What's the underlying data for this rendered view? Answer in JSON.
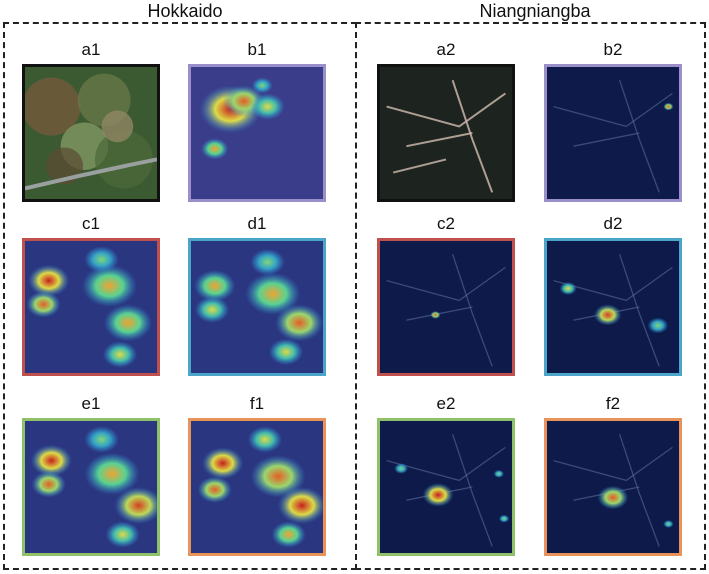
{
  "groups": [
    {
      "title": "Hokkaido",
      "panels": [
        {
          "label": "a1",
          "border_color": "#111111",
          "kind": "aerial-green",
          "hotspots": []
        },
        {
          "label": "b1",
          "border_color": "#9b8fc9",
          "kind": "heat-sparse",
          "hotspots": [
            [
              30,
              32,
              18,
              1.0
            ],
            [
              40,
              26,
              12,
              0.9
            ],
            [
              18,
              62,
              8,
              0.8
            ],
            [
              58,
              30,
              10,
              0.7
            ],
            [
              54,
              14,
              6,
              0.6
            ]
          ]
        },
        {
          "label": "c1",
          "border_color": "#c0504d",
          "kind": "heat-wide",
          "hotspots": [
            [
              18,
              30,
              12,
              1.0
            ],
            [
              14,
              48,
              10,
              0.9
            ],
            [
              64,
              34,
              16,
              0.8
            ],
            [
              78,
              62,
              14,
              0.8
            ],
            [
              72,
              86,
              10,
              0.7
            ],
            [
              58,
              14,
              10,
              0.6
            ]
          ]
        },
        {
          "label": "d1",
          "border_color": "#4aa5c8",
          "kind": "heat-wide",
          "hotspots": [
            [
              18,
              34,
              12,
              0.8
            ],
            [
              16,
              52,
              10,
              0.7
            ],
            [
              62,
              40,
              16,
              0.8
            ],
            [
              82,
              62,
              14,
              0.9
            ],
            [
              72,
              84,
              10,
              0.7
            ],
            [
              58,
              16,
              10,
              0.6
            ]
          ]
        },
        {
          "label": "e1",
          "border_color": "#8fc06a",
          "kind": "heat-wide",
          "hotspots": [
            [
              20,
              30,
              12,
              1.0
            ],
            [
              18,
              48,
              10,
              0.9
            ],
            [
              66,
              40,
              16,
              0.8
            ],
            [
              86,
              64,
              14,
              0.95
            ],
            [
              74,
              86,
              10,
              0.7
            ],
            [
              58,
              14,
              10,
              0.6
            ]
          ]
        },
        {
          "label": "f1",
          "border_color": "#e8935a",
          "kind": "heat-wide",
          "hotspots": [
            [
              24,
              32,
              12,
              1.0
            ],
            [
              18,
              52,
              10,
              0.9
            ],
            [
              66,
              42,
              16,
              0.9
            ],
            [
              84,
              64,
              14,
              1.0
            ],
            [
              74,
              86,
              10,
              0.8
            ],
            [
              56,
              14,
              10,
              0.7
            ]
          ]
        }
      ]
    },
    {
      "title": "Niangniangba",
      "panels": [
        {
          "label": "a2",
          "border_color": "#111111",
          "kind": "aerial-dark",
          "hotspots": []
        },
        {
          "label": "b2",
          "border_color": "#9b8fc9",
          "kind": "heat-dark",
          "hotspots": [
            [
              92,
              30,
              3,
              0.9
            ]
          ]
        },
        {
          "label": "c2",
          "border_color": "#c0504d",
          "kind": "heat-dark",
          "hotspots": [
            [
              42,
              56,
              3,
              0.9
            ]
          ]
        },
        {
          "label": "d2",
          "border_color": "#4aa5c8",
          "kind": "heat-dark",
          "hotspots": [
            [
              16,
              36,
              5,
              0.7
            ],
            [
              46,
              56,
              8,
              0.95
            ],
            [
              84,
              64,
              6,
              0.6
            ]
          ]
        },
        {
          "label": "e2",
          "border_color": "#8fc06a",
          "kind": "heat-dark",
          "hotspots": [
            [
              44,
              56,
              9,
              1.0
            ],
            [
              16,
              36,
              4,
              0.6
            ],
            [
              90,
              40,
              3,
              0.6
            ],
            [
              94,
              74,
              3,
              0.6
            ]
          ]
        },
        {
          "label": "f2",
          "border_color": "#e8935a",
          "kind": "heat-dark",
          "hotspots": [
            [
              50,
              58,
              9,
              0.9
            ],
            [
              92,
              78,
              3,
              0.6
            ]
          ]
        }
      ]
    }
  ]
}
